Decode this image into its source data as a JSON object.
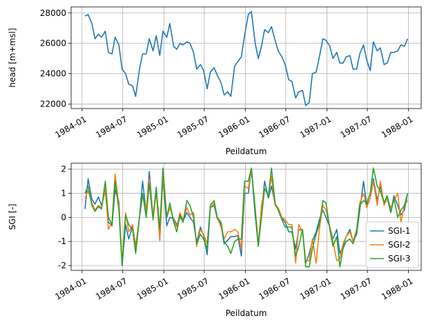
{
  "chart_data": [
    {
      "type": "line",
      "xlabel": "Peildatum",
      "ylabel": "head [m+msl]",
      "grid": true,
      "x_ticks": [
        "1984-01",
        "1984-07",
        "1985-01",
        "1985-07",
        "1986-01",
        "1986-07",
        "1987-01",
        "1987-07",
        "1988-01"
      ],
      "y_ticks": [
        22000,
        24000,
        26000,
        28000
      ],
      "xlim": [
        "1983-11-13",
        "1988-02-27"
      ],
      "ylim": [
        21700,
        28400
      ],
      "colors": [
        "#1f77b4"
      ],
      "series": [
        {
          "dates": [
            "1984-01-14",
            "1984-01-28",
            "1984-02-14",
            "1984-02-28",
            "1984-03-14",
            "1984-03-28",
            "1984-04-14",
            "1984-04-28",
            "1984-05-14",
            "1984-05-28",
            "1984-06-14",
            "1984-06-28",
            "1984-07-14",
            "1984-07-28",
            "1984-08-14",
            "1984-08-28",
            "1984-09-14",
            "1984-09-28",
            "1984-10-14",
            "1984-10-28",
            "1984-11-14",
            "1984-11-28",
            "1984-12-14",
            "1984-12-28",
            "1985-01-14",
            "1985-01-28",
            "1985-02-14",
            "1985-02-28",
            "1985-03-14",
            "1985-03-28",
            "1985-04-14",
            "1985-04-28",
            "1985-05-14",
            "1985-05-28",
            "1985-06-14",
            "1985-06-28",
            "1985-07-14",
            "1985-07-28",
            "1985-08-14",
            "1985-08-28",
            "1985-09-14",
            "1985-09-28",
            "1985-10-14",
            "1985-10-28",
            "1985-11-14",
            "1985-11-28",
            "1985-12-14",
            "1985-12-28",
            "1986-01-14",
            "1986-01-28",
            "1986-02-14",
            "1986-02-28",
            "1986-03-14",
            "1986-03-28",
            "1986-04-14",
            "1986-04-28",
            "1986-05-14",
            "1986-05-28",
            "1986-06-14",
            "1986-06-28",
            "1986-07-14",
            "1986-07-28",
            "1986-08-14",
            "1986-08-28",
            "1986-09-14",
            "1986-09-28",
            "1986-10-14",
            "1986-10-28",
            "1986-11-14",
            "1986-11-28",
            "1986-12-14",
            "1986-12-28",
            "1987-01-14",
            "1987-01-28",
            "1987-02-14",
            "1987-02-28",
            "1987-03-14",
            "1987-03-28",
            "1987-04-14",
            "1987-04-28",
            "1987-05-14",
            "1987-05-28",
            "1987-06-14",
            "1987-06-28",
            "1987-07-14",
            "1987-07-28",
            "1987-08-14",
            "1987-08-28",
            "1987-09-14",
            "1987-09-28",
            "1987-10-14",
            "1987-10-28",
            "1987-11-14",
            "1987-11-28",
            "1987-12-14",
            "1987-12-28"
          ],
          "values": [
            27800,
            27900,
            27300,
            26300,
            26600,
            26400,
            26800,
            25400,
            25300,
            26400,
            25900,
            24300,
            24000,
            23300,
            23200,
            22500,
            24300,
            25300,
            25300,
            26300,
            25500,
            26500,
            25200,
            26800,
            26400,
            27300,
            25800,
            25600,
            26000,
            25900,
            26100,
            26000,
            25400,
            24300,
            24600,
            24200,
            23000,
            24100,
            24400,
            23900,
            23400,
            22600,
            22800,
            22500,
            24500,
            24800,
            25100,
            26500,
            27900,
            28100,
            26000,
            25000,
            25800,
            26900,
            26700,
            27100,
            26200,
            25500,
            25100,
            24600,
            23600,
            23500,
            22400,
            22800,
            22900,
            21900,
            22100,
            24000,
            24100,
            25100,
            26300,
            26200,
            25800,
            25000,
            25400,
            24700,
            24700,
            25100,
            25200,
            24300,
            24300,
            25300,
            25900,
            24900,
            24200,
            26100,
            25500,
            25700,
            24600,
            24700,
            25400,
            25400,
            25500,
            25900,
            25800,
            26300
          ]
        }
      ]
    },
    {
      "type": "line",
      "xlabel": "Peildatum",
      "ylabel": "SGI [-]",
      "grid": true,
      "legend": "lower-right",
      "x_ticks": [
        "1984-01",
        "1984-07",
        "1985-01",
        "1985-07",
        "1986-01",
        "1986-07",
        "1987-01",
        "1987-07",
        "1988-01"
      ],
      "y_ticks": [
        -2,
        -1,
        0,
        1,
        2
      ],
      "xlim": [
        "1983-11-13",
        "1988-02-27"
      ],
      "ylim": [
        -2.2,
        2.25
      ],
      "colors": [
        "#1f77b4",
        "#ff7f0e",
        "#2ca02c"
      ],
      "series": [
        {
          "name": "SGI-1",
          "values": [
            0.35,
            1.6,
            0.75,
            0.55,
            0.85,
            0.5,
            1.1,
            -0.2,
            -0.35,
            1.15,
            0.65,
            -2.0,
            -0.3,
            -0.9,
            -0.35,
            -1.2,
            0.0,
            1.5,
            0.2,
            1.9,
            0.0,
            1.25,
            -0.95,
            1.65,
            -0.35,
            0.0,
            -0.05,
            -0.3,
            0.0,
            -0.15,
            0.2,
            0.0,
            -0.2,
            -1.05,
            -0.4,
            -0.75,
            -1.55,
            0.4,
            0.5,
            -0.05,
            -0.3,
            -1.1,
            -0.95,
            -0.8,
            -0.8,
            -0.75,
            -1.6,
            1.0,
            1.0,
            2.0,
            0.1,
            -1.2,
            0.2,
            1.5,
            0.8,
            1.3,
            0.55,
            0.35,
            -0.05,
            -0.2,
            -0.6,
            -0.6,
            -1.3,
            -0.5,
            -0.55,
            -1.9,
            -1.5,
            -1.0,
            -0.6,
            -0.1,
            0.3,
            0.0,
            -0.4,
            -0.9,
            -0.5,
            -1.5,
            -1.2,
            -0.8,
            -0.5,
            -1.0,
            -0.7,
            0.3,
            1.5,
            0.5,
            0.8,
            1.6,
            0.7,
            1.3,
            0.6,
            0.8,
            0.2,
            0.9,
            0.5,
            0.1,
            0.3,
            1.0
          ]
        },
        {
          "name": "SGI-2",
          "values": [
            0.8,
            1.1,
            0.6,
            0.3,
            0.5,
            0.4,
            1.2,
            -0.5,
            -0.2,
            1.8,
            0.5,
            -1.9,
            0.2,
            -0.6,
            -0.3,
            -1.3,
            0.0,
            0.9,
            0.3,
            1.6,
            0.1,
            1.0,
            -0.9,
            1.8,
            0.0,
            0.4,
            -0.1,
            -0.4,
            0.2,
            -0.1,
            0.4,
            0.1,
            0.2,
            -1.2,
            -0.5,
            -0.7,
            -1.1,
            0.4,
            0.6,
            0.0,
            -0.4,
            -0.9,
            -0.6,
            -0.6,
            -0.5,
            -0.6,
            -1.3,
            1.3,
            1.2,
            2.0,
            0.4,
            -1.1,
            0.5,
            1.2,
            0.9,
            1.7,
            0.5,
            0.4,
            0.0,
            -0.1,
            -0.3,
            -0.3,
            -1.9,
            -0.3,
            -0.6,
            -1.8,
            -1.8,
            -0.9,
            -1.9,
            -0.5,
            0.5,
            0.3,
            -0.4,
            -1.0,
            -1.8,
            -1.7,
            -1.1,
            -0.8,
            -0.6,
            -1.0,
            -0.5,
            0.6,
            1.0,
            0.4,
            0.8,
            1.5,
            0.5,
            1.5,
            0.5,
            0.8,
            0.4,
            0.7,
            1.0,
            -0.2,
            0.5,
            0.7
          ]
        },
        {
          "name": "SGI-3",
          "values": [
            1.0,
            1.3,
            0.5,
            0.25,
            0.45,
            0.35,
            1.5,
            0.0,
            -0.3,
            1.5,
            0.3,
            -2.0,
            0.1,
            -0.3,
            -0.5,
            -1.5,
            0.0,
            1.0,
            0.0,
            1.4,
            -0.1,
            1.2,
            -0.5,
            2.05,
            0.0,
            0.6,
            -0.2,
            -0.6,
            0.1,
            -0.2,
            0.7,
            0.5,
            0.0,
            -1.1,
            -0.7,
            -0.9,
            -1.3,
            0.5,
            0.7,
            0.0,
            -0.2,
            -1.0,
            -1.2,
            -1.5,
            -1.0,
            -0.9,
            -0.9,
            1.5,
            1.5,
            2.05,
            0.3,
            -1.2,
            0.0,
            1.2,
            0.9,
            2.05,
            0.6,
            0.3,
            -0.1,
            -0.4,
            -0.4,
            -0.4,
            -1.6,
            -1.2,
            -0.5,
            -2.05,
            -2.05,
            -1.3,
            -0.7,
            -0.3,
            0.7,
            0.6,
            -0.5,
            -1.2,
            -0.8,
            -2.05,
            -1.3,
            -1.0,
            -0.9,
            -1.1,
            -0.6,
            0.5,
            0.7,
            0.6,
            1.0,
            2.05,
            1.3,
            1.1,
            0.6,
            0.9,
            0.2,
            0.8,
            0.0,
            0.3,
            0.5,
            1.0
          ]
        }
      ]
    }
  ]
}
